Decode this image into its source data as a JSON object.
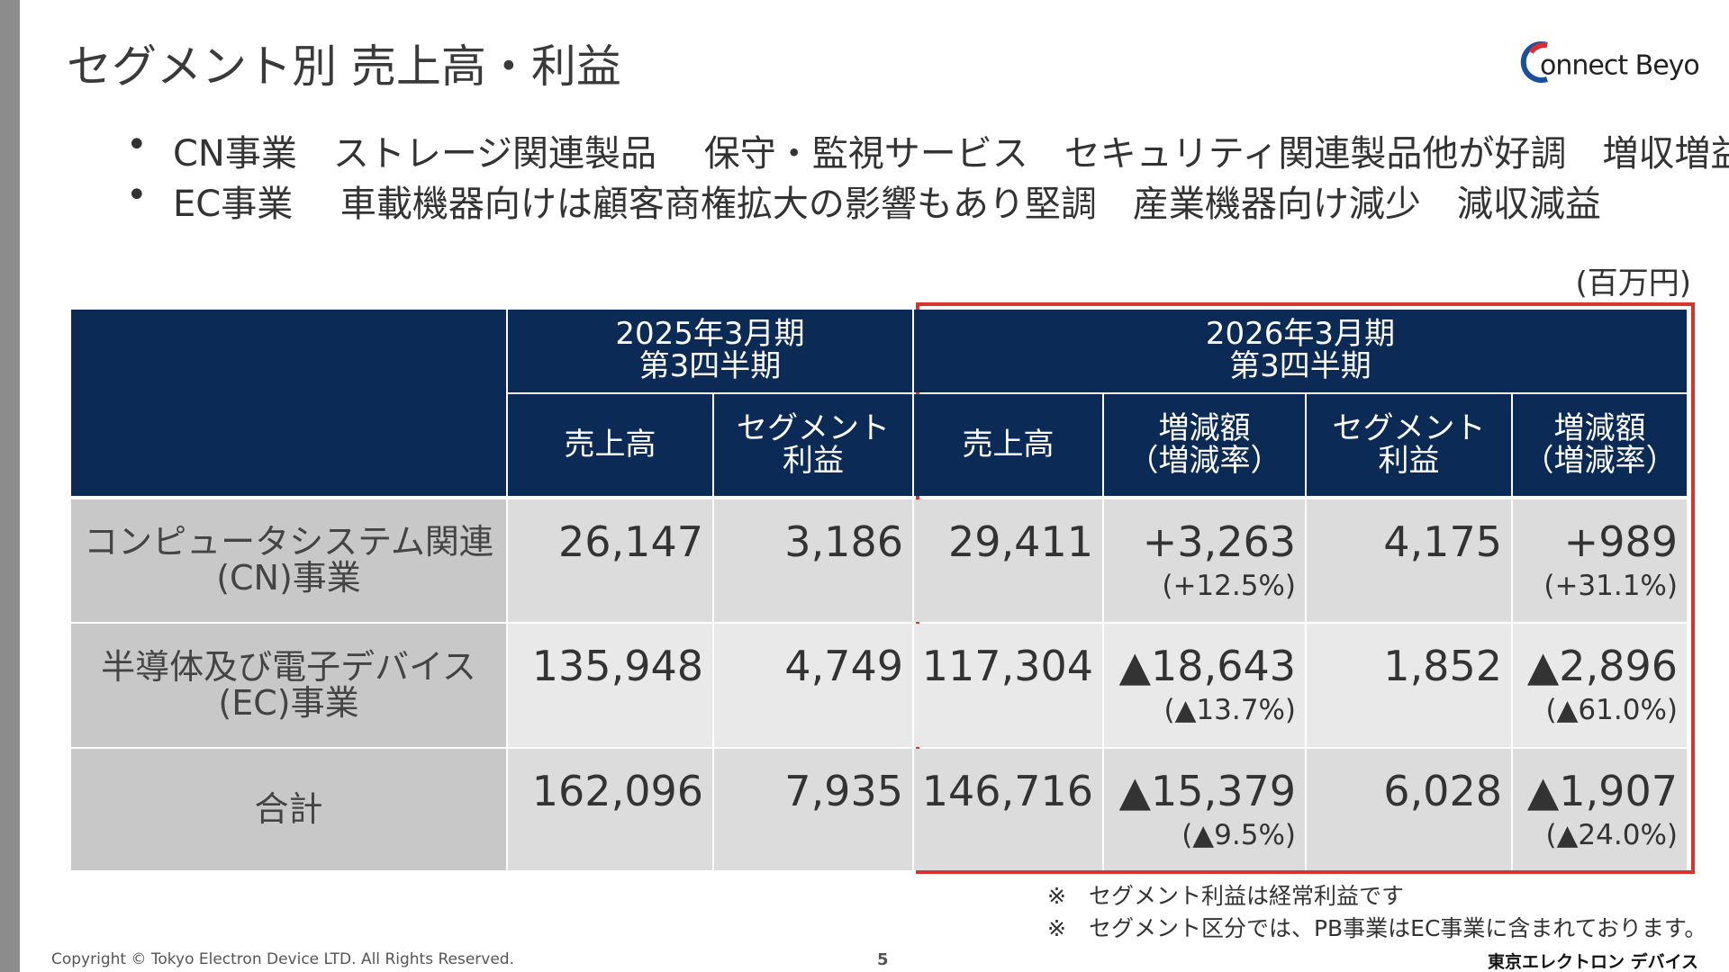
{
  "header": {
    "title": "セグメント別 売上高・利益",
    "logo": "onnect Beyond"
  },
  "bullets": [
    "CN事業　ストレージ関連製品　 保守・監視サービス　セキュリティ関連製品他が好調　増収増益",
    "EC事業　 車載機器向けは顧客商権拡大の影響もあり堅調　産業機器向け減少　減収減益"
  ],
  "unit": "(百万円)",
  "table": {
    "periods": [
      [
        "2025年3月期",
        "第3四半期"
      ],
      [
        "2026年3月期",
        "第3四半期"
      ]
    ],
    "columns": [
      [
        "売上高"
      ],
      [
        "セグメント",
        "利益"
      ],
      [
        "売上高"
      ],
      [
        "増減額",
        "（増減率）"
      ],
      [
        "セグメント",
        "利益"
      ],
      [
        "増減額",
        "（増減率）"
      ]
    ],
    "rows": [
      {
        "label": [
          "コンピュータシステム関連",
          "(CN)事業"
        ],
        "cells": [
          {
            "main": "26,147"
          },
          {
            "main": "3,186"
          },
          {
            "main": "29,411"
          },
          {
            "main": "+3,263",
            "sub": "(+12.5%)"
          },
          {
            "main": "4,175"
          },
          {
            "main": "+989",
            "sub": "(+31.1%)"
          }
        ]
      },
      {
        "label": [
          "半導体及び電子デバイス",
          "(EC)事業"
        ],
        "cells": [
          {
            "main": "135,948"
          },
          {
            "main": "4,749"
          },
          {
            "main": "117,304"
          },
          {
            "main": "▲18,643",
            "sub": "(▲13.7%)"
          },
          {
            "main": "1,852"
          },
          {
            "main": "▲2,896",
            "sub": "(▲61.0%)"
          }
        ]
      },
      {
        "label": [
          "合計"
        ],
        "cells": [
          {
            "main": "162,096"
          },
          {
            "main": "7,935"
          },
          {
            "main": "146,716"
          },
          {
            "main": "▲15,379",
            "sub": "(▲9.5%)"
          },
          {
            "main": "6,028"
          },
          {
            "main": "▲1,907",
            "sub": "(▲24.0%)"
          }
        ]
      }
    ]
  },
  "notes": [
    "※　セグメント利益は経常利益です",
    "※　セグメント区分では、PB事業はEC事業に含まれております。"
  ],
  "footer": {
    "copyright": "Copyright © Tokyo Electron Device LTD. All Rights Reserved.",
    "page": "5",
    "company": "東京エレクトロン デバイス"
  }
}
